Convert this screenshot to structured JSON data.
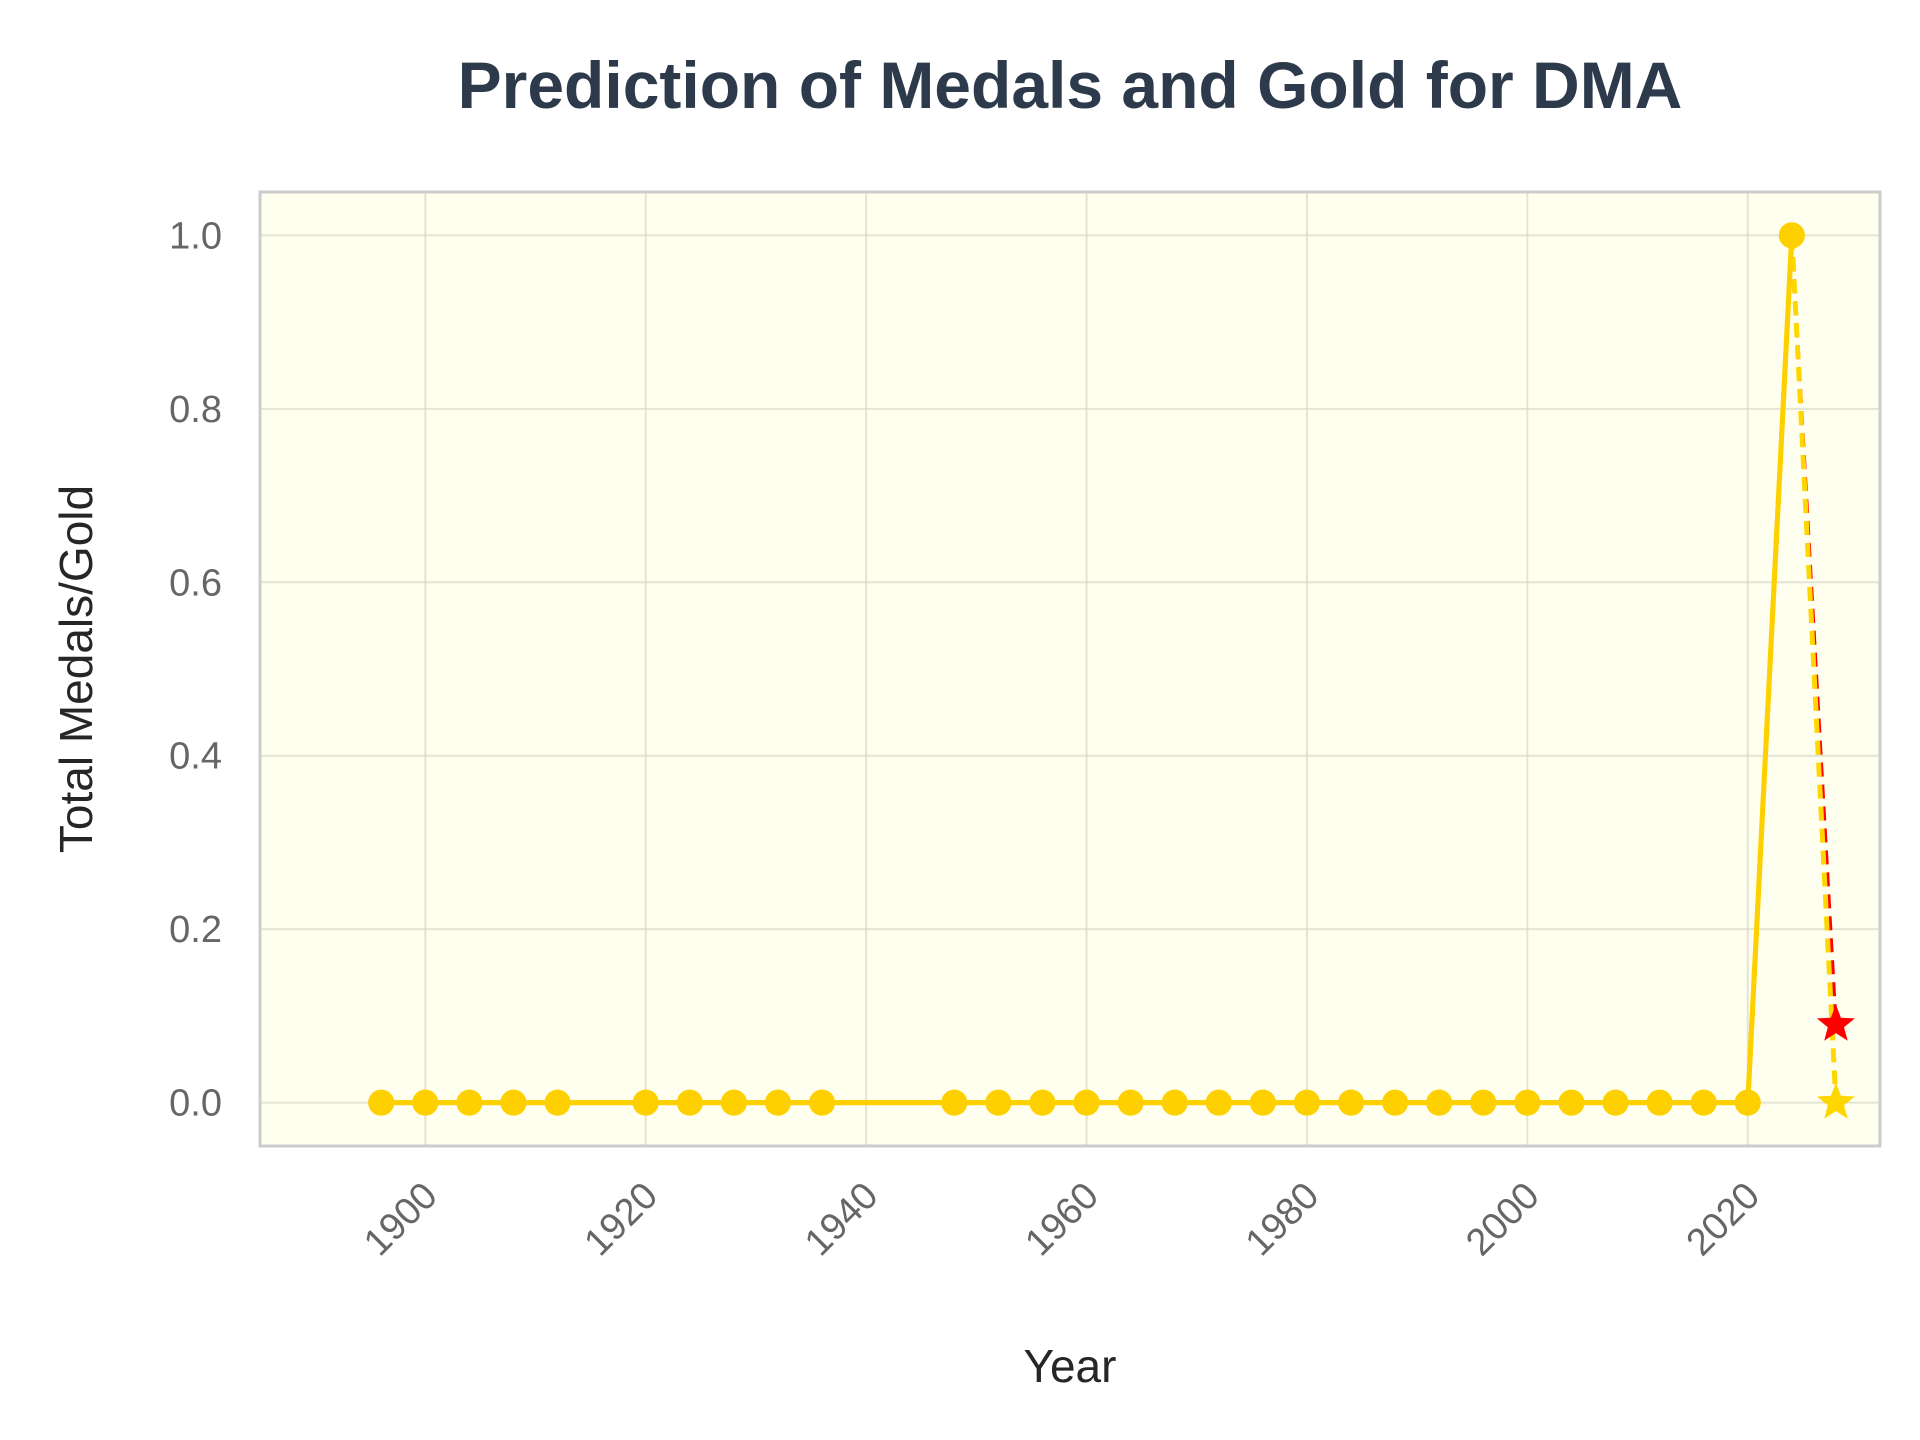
{
  "chart_data": {
    "type": "line",
    "title": "Prediction of Medals and Gold for DMA",
    "xlabel": "Year",
    "ylabel": "Total Medals/Gold",
    "xlim": [
      1885,
      2032
    ],
    "ylim": [
      -0.05,
      1.05
    ],
    "x_ticks": [
      1900,
      1920,
      1940,
      1960,
      1980,
      2000,
      2020
    ],
    "y_ticks": [
      0.0,
      0.2,
      0.4,
      0.6,
      0.8,
      1.0
    ],
    "y_tick_labels": [
      "0.0",
      "0.2",
      "0.4",
      "0.6",
      "0.8",
      "1.0"
    ],
    "grid": true,
    "legend": "none",
    "colors": {
      "plot_background": "#fffff0",
      "frame": "#cccccc",
      "grid": "#d8d8c8",
      "medals": "#ffd700",
      "gold": "#ffd000",
      "prediction_medals": "#ff0000",
      "prediction_gold": "#ffd700"
    },
    "series": [
      {
        "x": [
          1896,
          1900,
          1904,
          1908,
          1912,
          1920,
          1924,
          1928,
          1932,
          1936,
          1948,
          1952,
          1956,
          1960,
          1964,
          1968,
          1972,
          1976,
          1980,
          1984,
          1988,
          1992,
          1996,
          2000,
          2004,
          2008,
          2012,
          2016,
          2020,
          2024
        ],
        "values": [
          0,
          0,
          0,
          0,
          0,
          0,
          0,
          0,
          0,
          0,
          0,
          0,
          0,
          0,
          0,
          0,
          0,
          0,
          0,
          0,
          0,
          0,
          0,
          0,
          0,
          0,
          0,
          0,
          0,
          1
        ],
        "style": "solid",
        "marker": "circle"
      },
      {
        "x": [
          1896,
          1900,
          1904,
          1908,
          1912,
          1920,
          1924,
          1928,
          1932,
          1936,
          1948,
          1952,
          1956,
          1960,
          1964,
          1968,
          1972,
          1976,
          1980,
          1984,
          1988,
          1992,
          1996,
          2000,
          2004,
          2008,
          2012,
          2016,
          2020,
          2024
        ],
        "values": [
          0,
          0,
          0,
          0,
          0,
          0,
          0,
          0,
          0,
          0,
          0,
          0,
          0,
          0,
          0,
          0,
          0,
          0,
          0,
          0,
          0,
          0,
          0,
          0,
          0,
          0,
          0,
          0,
          0,
          1
        ],
        "style": "solid",
        "marker": "circle"
      }
    ],
    "predictions": [
      {
        "x": [
          2024,
          2028
        ],
        "values": [
          1,
          0.09
        ],
        "style": "dashed",
        "marker": "star"
      },
      {
        "x": [
          2024,
          2028
        ],
        "values": [
          1,
          0
        ],
        "style": "dashed",
        "marker": "star"
      }
    ]
  }
}
